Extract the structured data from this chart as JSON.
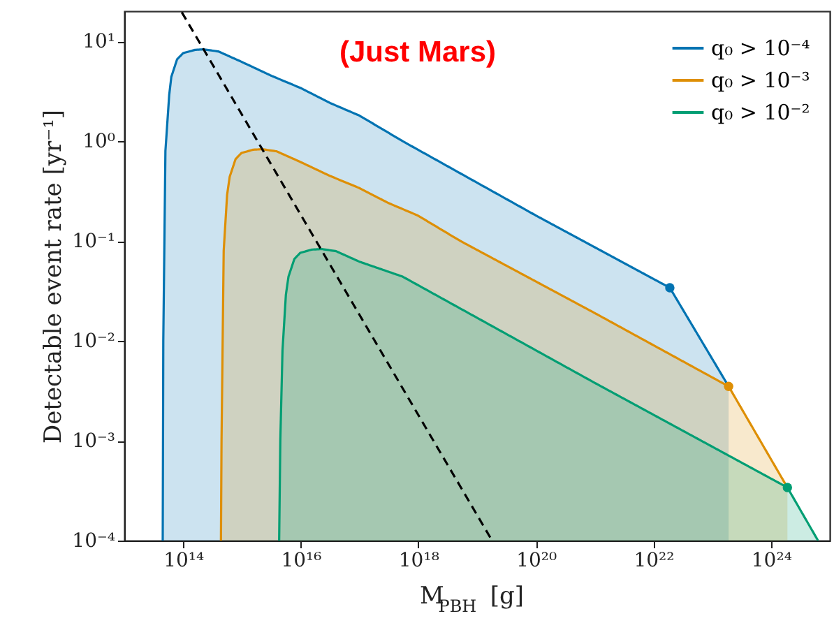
{
  "chart_data": {
    "type": "area",
    "xlabel": "M$_{PBH}$ [g]",
    "ylabel": "Detectable event rate [yr⁻¹]",
    "annotations": [
      "(Just Mars)"
    ],
    "log": "xy",
    "xlim": [
      10000000000000.0,
      1e+25
    ],
    "ylim": [
      0.0001,
      20
    ],
    "xticks": [
      {
        "value": 100000000000000.0,
        "label": "10¹⁴"
      },
      {
        "value": 1e+16,
        "label": "10¹⁶"
      },
      {
        "value": 1e+18,
        "label": "10¹⁸"
      },
      {
        "value": 1e+20,
        "label": "10²⁰"
      },
      {
        "value": 1e+22,
        "label": "10²²"
      },
      {
        "value": 1e+24,
        "label": "10²⁴"
      }
    ],
    "yticks": [
      {
        "value": 0.0001,
        "label": "10⁻⁴"
      },
      {
        "value": 0.001,
        "label": "10⁻³"
      },
      {
        "value": 0.01,
        "label": "10⁻²"
      },
      {
        "value": 0.1,
        "label": "10⁻¹"
      },
      {
        "value": 1,
        "label": "10⁰"
      },
      {
        "value": 10,
        "label": "10¹"
      }
    ],
    "legend": "top right",
    "series": [
      {
        "name": "q₀ > 10⁻⁴",
        "color": "#0173b2",
        "x": [
          45000000000000.0,
          46000000000000.0,
          50000000000000.0,
          58000000000000.0,
          63000000000000.0,
          79000000000000.0,
          100000000000000.0,
          160000000000000.0,
          220000000000000.0,
          400000000000000.0,
          1000000000000000.0,
          3200000000000000.0,
          1e+16,
          3.2e+16,
          1e+17,
          5.4e+17,
          1e+20,
          1.9e+22,
          1.9e+23
        ],
        "values": [
          0.0001,
          0.01,
          0.8,
          2.9,
          4.4,
          6.6,
          7.6,
          8.2,
          8.3,
          7.9,
          6.2,
          4.5,
          3.4,
          2.4,
          1.8,
          1.0,
          0.18,
          0.034,
          0.0035
        ]
      },
      {
        "name": "q₀ > 10⁻³",
        "color": "#de8f05",
        "x": [
          440000000000000.0,
          450000000000000.0,
          490000000000000.0,
          560000000000000.0,
          620000000000000.0,
          780000000000000.0,
          980000000000000.0,
          1550000000000000.0,
          2200000000000000.0,
          3900000000000000.0,
          9800000000000000.0,
          3.1e+16,
          9.8e+16,
          3.1e+17,
          9.8e+17,
          5.2e+18,
          1e+21,
          1.9e+23,
          1.9e+24
        ],
        "values": [
          0.0001,
          0.001,
          0.08,
          0.29,
          0.44,
          0.66,
          0.76,
          0.82,
          0.83,
          0.79,
          0.62,
          0.45,
          0.34,
          0.24,
          0.18,
          0.1,
          0.019,
          0.0035,
          0.00034
        ]
      },
      {
        "name": "q₀ > 10⁻²",
        "color": "#029e73",
        "x": [
          4300000000000000.0,
          4500000000000000.0,
          4900000000000000.0,
          5600000000000000.0,
          6200000000000000.0,
          7800000000000000.0,
          9800000000000000.0,
          1.55e+16,
          2.3e+16,
          4e+16,
          1e+17,
          5.4e+17,
          1e+21,
          1.9e+24,
          6.3e+24
        ],
        "values": [
          0.0001,
          0.001,
          0.008,
          0.029,
          0.044,
          0.066,
          0.076,
          0.082,
          0.083,
          0.079,
          0.062,
          0.044,
          0.0038,
          0.00034,
          0.0001
        ]
      },
      {
        "type": "line",
        "color": "#000000",
        "line_style": "dashed",
        "x": [
          95000000000000.0,
          1.8e+19
        ],
        "values": [
          19.5,
          0.0001
        ]
      },
      {
        "type": "scatter",
        "marker": "circle",
        "color": "#0173b2",
        "x": [
          1.9e+22
        ],
        "values": [
          0.034
        ]
      },
      {
        "type": "scatter",
        "marker": "circle",
        "color": "#de8f05",
        "x": [
          1.9e+23
        ],
        "values": [
          0.0035
        ]
      },
      {
        "type": "scatter",
        "marker": "circle",
        "color": "#029e73",
        "x": [
          1.9e+24
        ],
        "values": [
          0.00034
        ]
      }
    ]
  }
}
